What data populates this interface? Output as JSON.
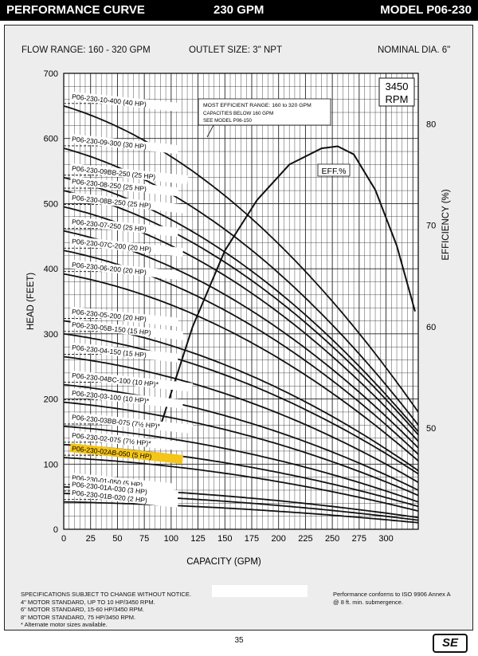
{
  "header": {
    "title": "PERFORMANCE CURVE",
    "flow": "230 GPM",
    "model": "MODEL  P06-230"
  },
  "info": {
    "flow_range": "FLOW RANGE: 160 - 320 GPM",
    "outlet_size": "OUTLET SIZE: 3\" NPT",
    "nominal_dia": "NOMINAL DIA. 6\""
  },
  "rpm_box": {
    "line1": "3450",
    "line2": "RPM"
  },
  "callout": [
    "MOST EFFICIENT RANGE: 160 to 320 GPM",
    "CAPACITIES BELOW 160 GPM",
    "SEE  MODEL P06-150"
  ],
  "eff_label": "EFF.%",
  "highlight_color": "#f5c518",
  "chart_data": {
    "type": "line",
    "xlabel": "CAPACITY (GPM)",
    "ylabel": "HEAD (FEET)",
    "y2label": "EFFICIENCY (%)",
    "xlim": [
      0,
      330
    ],
    "ylim": [
      0,
      700
    ],
    "y2lim": [
      40,
      85
    ],
    "x_ticks": [
      0,
      25,
      50,
      75,
      100,
      125,
      150,
      175,
      200,
      225,
      250,
      275,
      300
    ],
    "y_ticks": [
      0,
      100,
      200,
      300,
      400,
      500,
      600,
      700
    ],
    "y2_ticks": [
      50,
      60,
      70,
      80
    ],
    "grid": true,
    "series": [
      {
        "name": "P06-230-10-400 (40 HP)",
        "shutoff": 650,
        "end": 180,
        "highlight": false
      },
      {
        "name": "P06-230-09-300 (30 HP)",
        "shutoff": 585,
        "end": 160,
        "highlight": false
      },
      {
        "name": "P06-230-09BB-250 (25 HP)",
        "shutoff": 540,
        "end": 150,
        "highlight": false
      },
      {
        "name": "P06-230-08-250 (25 HP)",
        "shutoff": 520,
        "end": 145,
        "highlight": false
      },
      {
        "name": "P06-230-08B-250 (25 HP)",
        "shutoff": 495,
        "end": 135,
        "highlight": false
      },
      {
        "name": "P06-230-07-250 (25 HP)",
        "shutoff": 458,
        "end": 125,
        "highlight": false
      },
      {
        "name": "P06-230-07C-200 (20 HP)",
        "shutoff": 428,
        "end": 115,
        "highlight": false
      },
      {
        "name": "P06-230-06-200 (20 HP)",
        "shutoff": 392,
        "end": 105,
        "highlight": false
      },
      {
        "name": "P06-230-05-200 (20 HP)",
        "shutoff": 320,
        "end": 90,
        "highlight": false
      },
      {
        "name": "P06-230-05B-150 (15 HP)",
        "shutoff": 300,
        "end": 85,
        "highlight": false
      },
      {
        "name": "P06-230-04-150 (15 HP)",
        "shutoff": 265,
        "end": 72,
        "highlight": false
      },
      {
        "name": "P06-230-04BC-100 (10 HP)*",
        "shutoff": 222,
        "end": 60,
        "highlight": false
      },
      {
        "name": "P06-230-03-100 (10 HP)*",
        "shutoff": 195,
        "end": 52,
        "highlight": false
      },
      {
        "name": "P06-230-03BB-075 (7½ HP)*",
        "shutoff": 158,
        "end": 42,
        "highlight": false
      },
      {
        "name": "P06-230-02-075 (7½ HP)*",
        "shutoff": 130,
        "end": 35,
        "highlight": false
      },
      {
        "name": "P06-230-02AB-050 (5 HP)",
        "shutoff": 110,
        "end": 28,
        "highlight": true
      },
      {
        "name": "P06-230-01-050 (5 HP)",
        "shutoff": 65,
        "end": 18,
        "highlight": false
      },
      {
        "name": "P06-230-01A-030 (3 HP)",
        "shutoff": 55,
        "end": 14,
        "highlight": false
      },
      {
        "name": "P06-230-01B-020 (2 HP)",
        "shutoff": 42,
        "end": 10,
        "highlight": false
      }
    ],
    "efficiency": {
      "x": [
        90,
        120,
        150,
        180,
        210,
        240,
        255,
        270,
        290,
        310,
        327
      ],
      "y": [
        50.2,
        60,
        67.5,
        72.5,
        76,
        77.6,
        77.8,
        77,
        73.5,
        68,
        61.5
      ]
    }
  },
  "footer": {
    "left": [
      "SPECIFICATIONS SUBJECT TO CHANGE WITHOUT NOTICE.",
      "4\" MOTOR STANDARD, UP TO 10 HP/3450 RPM.",
      "6\" MOTOR STANDARD, 15-60 HP/3450 RPM.",
      "8\" MOTOR STANDARD, 75 HP/3450 RPM.",
      "* Alternate motor sizes available."
    ],
    "right": [
      "Performance conforms to ISO 9906 Annex A",
      "@ 8 ft. min. submergence."
    ],
    "page_number": "35",
    "logo": "SE"
  }
}
